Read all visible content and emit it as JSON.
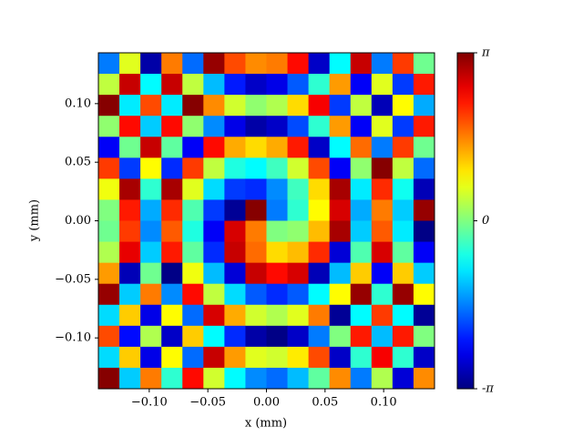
{
  "chart_data": {
    "type": "heatmap",
    "colormap": "jet",
    "xlabel": "x (mm)",
    "ylabel": "y (mm)",
    "xlim": [
      -0.1434,
      0.1434
    ],
    "ylim": [
      -0.1434,
      0.1434
    ],
    "xticks": [
      {
        "value": -0.1,
        "label": "−0.10"
      },
      {
        "value": -0.05,
        "label": "−0.05"
      },
      {
        "value": 0,
        "label": "0.00"
      },
      {
        "value": 0.05,
        "label": "0.05"
      },
      {
        "value": 0.1,
        "label": "0.10"
      }
    ],
    "yticks": [
      {
        "value": -0.1,
        "label": "−0.10"
      },
      {
        "value": -0.05,
        "label": "−0.05"
      },
      {
        "value": 0,
        "label": "0.00"
      },
      {
        "value": 0.05,
        "label": "0.05"
      },
      {
        "value": 0.1,
        "label": "0.10"
      }
    ],
    "zlim": [
      -3.14159,
      3.14159
    ],
    "zticks": [
      {
        "value": -3.14159,
        "label": "-π"
      },
      0,
      {
        "value": 3.14159,
        "label": "π"
      }
    ],
    "z": [
      [
        -1.6,
        0.6,
        -2.9,
        1.6,
        -1.7,
        3.0,
        1.9,
        1.5,
        1.6,
        2.3,
        -2.7,
        -0.8,
        2.7,
        -1.6,
        2.0,
        -0.1
      ],
      [
        0.4,
        2.7,
        -0.8,
        2.7,
        0.4,
        -1.2,
        -2.2,
        -2.7,
        -2.5,
        -1.8,
        -0.5,
        1.4,
        -2.4,
        0.6,
        -2.0,
        2.2
      ],
      [
        3.1,
        -0.9,
        1.9,
        -0.9,
        3.1,
        1.5,
        0.5,
        0.1,
        0.3,
        1.0,
        2.4,
        -2.0,
        0.4,
        -2.8,
        0.8,
        -1.3
      ],
      [
        0.1,
        2.3,
        -1.1,
        2.3,
        0.1,
        -1.5,
        -2.5,
        -2.9,
        -2.7,
        -1.9,
        -0.5,
        1.4,
        -2.4,
        0.6,
        -2.0,
        2.2
      ],
      [
        -2.4,
        -0.1,
        2.7,
        -0.2,
        -2.4,
        2.3,
        1.3,
        1.0,
        1.3,
        2.2,
        -2.7,
        -0.8,
        1.7,
        -1.6,
        2.0,
        -0.1
      ],
      [
        2.0,
        -2.0,
        0.8,
        -2.1,
        2.0,
        0.4,
        -0.6,
        -0.8,
        -0.4,
        0.5,
        1.9,
        -2.4,
        0.1,
        3.1,
        0.4,
        -1.7
      ],
      [
        0.7,
        2.9,
        -0.5,
        2.9,
        0.6,
        -1.0,
        -2.0,
        -2.1,
        -1.5,
        -0.4,
        1.0,
        2.9,
        -0.9,
        2.1,
        -0.7,
        -2.8
      ],
      [
        0.0,
        2.2,
        -1.3,
        2.1,
        -0.3,
        -2.0,
        -3.0,
        3.1,
        -1.6,
        -0.5,
        0.8,
        2.6,
        -1.3,
        1.6,
        -1.1,
        3.0
      ],
      [
        -0.1,
        2.0,
        -1.5,
        1.8,
        -0.6,
        -2.4,
        2.6,
        1.6,
        0.0,
        0.1,
        1.2,
        2.9,
        -1.1,
        1.8,
        -0.9,
        -3.1
      ],
      [
        0.3,
        2.5,
        -1.1,
        2.2,
        -0.2,
        -2.1,
        2.7,
        1.7,
        1.0,
        1.2,
        2.1,
        -2.6,
        -0.3,
        2.6,
        -0.2,
        -2.4
      ],
      [
        1.4,
        -2.8,
        -0.1,
        -3.1,
        0.7,
        -1.2,
        -2.6,
        2.7,
        2.3,
        2.6,
        -2.8,
        -1.2,
        1.1,
        -2.4,
        1.1,
        -1.1
      ],
      [
        3.0,
        -1.1,
        1.6,
        -1.5,
        2.3,
        0.4,
        -1.0,
        -1.8,
        -2.1,
        -1.8,
        -0.8,
        0.8,
        3.0,
        -0.5,
        3.0,
        0.8
      ],
      [
        -1.0,
        1.1,
        -2.5,
        0.8,
        -1.7,
        2.6,
        1.3,
        0.5,
        0.3,
        0.6,
        1.6,
        -3.0,
        -0.8,
        2.0,
        -0.8,
        -3.0
      ],
      [
        1.9,
        -2.3,
        0.3,
        -2.7,
        1.1,
        -0.8,
        -2.1,
        -2.9,
        -3.1,
        -2.7,
        -1.6,
        0.0,
        2.2,
        -1.2,
        2.2,
        0.0
      ],
      [
        -1.0,
        1.1,
        -2.5,
        0.8,
        -1.7,
        2.7,
        1.4,
        0.6,
        0.5,
        0.9,
        1.9,
        -2.7,
        -0.5,
        2.4,
        -0.5,
        -2.7
      ],
      [
        3.1,
        -1.1,
        1.6,
        -0.5,
        2.3,
        0.5,
        -0.8,
        -1.5,
        -1.7,
        -1.2,
        -0.2,
        1.5,
        -1.6,
        0.3,
        -2.6,
        1.5
      ]
    ]
  }
}
